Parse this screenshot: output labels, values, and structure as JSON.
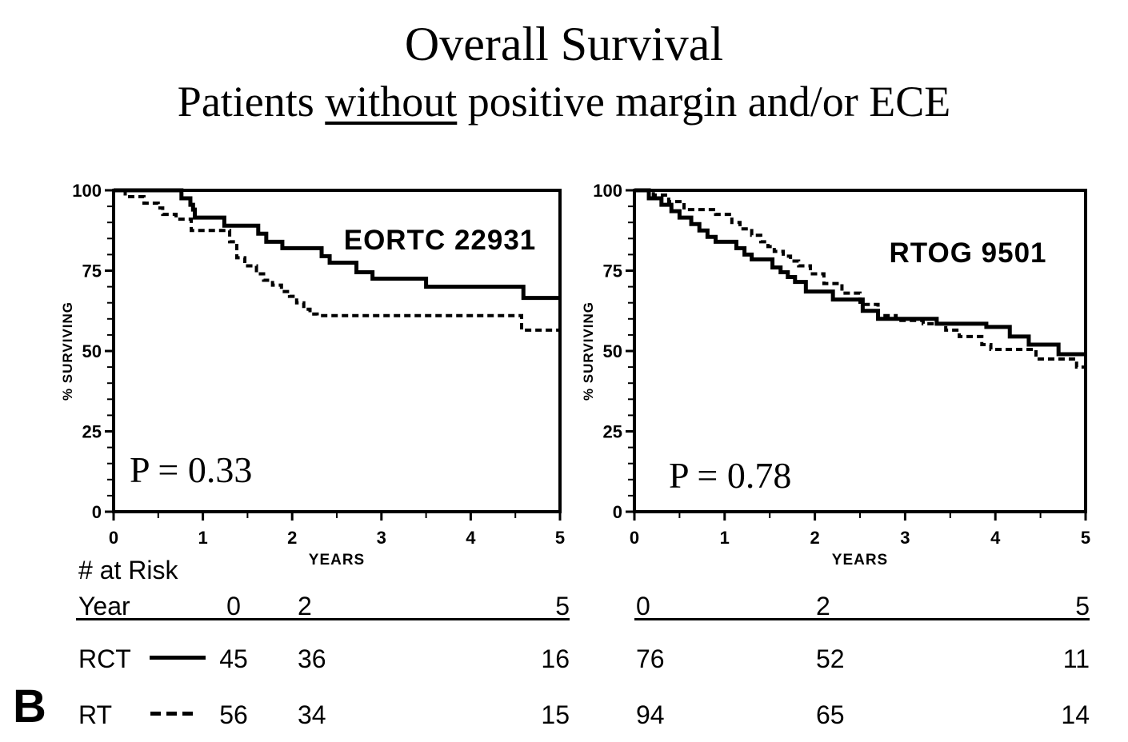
{
  "figure": {
    "title": "Overall Survival",
    "subtitle_pre": "Patients ",
    "subtitle_underlined": "without",
    "subtitle_post": " positive margin and/or ECE",
    "panel_label": "B"
  },
  "chart_data": [
    {
      "type": "line",
      "variant": "kaplan-meier-step",
      "title": "EORTC 22931",
      "p_value_label": "P = 0.33",
      "xlabel": "YEARS",
      "ylabel": "% SURVIVING",
      "xlim": [
        0,
        5
      ],
      "ylim": [
        0,
        100
      ],
      "x_ticks": [
        0,
        1,
        2,
        3,
        4,
        5
      ],
      "y_ticks": [
        0,
        25,
        50,
        75,
        100
      ],
      "x_minor_step": 0.5,
      "y_minor_step": 5,
      "grid": false,
      "series": [
        {
          "name": "RCT",
          "style": "solid",
          "steps": [
            [
              0,
              100
            ],
            [
              0.76,
              97.5
            ],
            [
              0.86,
              95.5
            ],
            [
              0.89,
              94
            ],
            [
              0.91,
              91.5
            ],
            [
              1.24,
              89
            ],
            [
              1.62,
              86.5
            ],
            [
              1.71,
              84
            ],
            [
              1.89,
              82
            ],
            [
              2.33,
              79.5
            ],
            [
              2.42,
              77.5
            ],
            [
              2.72,
              74.5
            ],
            [
              2.9,
              72.5
            ],
            [
              3.5,
              70
            ],
            [
              4.59,
              66.5
            ]
          ]
        },
        {
          "name": "RT",
          "style": "dashed",
          "steps": [
            [
              0,
              100
            ],
            [
              0.13,
              98
            ],
            [
              0.34,
              96
            ],
            [
              0.5,
              94.5
            ],
            [
              0.55,
              92.5
            ],
            [
              0.7,
              91
            ],
            [
              0.87,
              87.5
            ],
            [
              1.3,
              84
            ],
            [
              1.38,
              79
            ],
            [
              1.47,
              76.5
            ],
            [
              1.6,
              74
            ],
            [
              1.68,
              72
            ],
            [
              1.78,
              70.5
            ],
            [
              1.88,
              68.5
            ],
            [
              1.97,
              67
            ],
            [
              2.05,
              65
            ],
            [
              2.13,
              63
            ],
            [
              2.2,
              61.5
            ],
            [
              2.28,
              61
            ],
            [
              4.57,
              56.5
            ]
          ]
        }
      ]
    },
    {
      "type": "line",
      "variant": "kaplan-meier-step",
      "title": "RTOG 9501",
      "p_value_label": "P = 0.78",
      "xlabel": "YEARS",
      "ylabel": "% SURVIVING",
      "xlim": [
        0,
        5
      ],
      "ylim": [
        0,
        100
      ],
      "x_ticks": [
        0,
        1,
        2,
        3,
        4,
        5
      ],
      "y_ticks": [
        0,
        25,
        50,
        75,
        100
      ],
      "x_minor_step": 0.5,
      "y_minor_step": 5,
      "grid": false,
      "series": [
        {
          "name": "RCT",
          "style": "solid",
          "steps": [
            [
              0,
              100
            ],
            [
              0.16,
              97.5
            ],
            [
              0.3,
              95.5
            ],
            [
              0.41,
              93.5
            ],
            [
              0.5,
              91.5
            ],
            [
              0.63,
              89.5
            ],
            [
              0.72,
              87.5
            ],
            [
              0.81,
              85.5
            ],
            [
              0.9,
              84
            ],
            [
              1.13,
              82
            ],
            [
              1.22,
              80
            ],
            [
              1.3,
              78.5
            ],
            [
              1.53,
              76
            ],
            [
              1.62,
              74.5
            ],
            [
              1.7,
              73
            ],
            [
              1.78,
              71.5
            ],
            [
              1.9,
              68.5
            ],
            [
              2.2,
              66
            ],
            [
              2.53,
              62.5
            ],
            [
              2.7,
              60
            ],
            [
              3.35,
              58.5
            ],
            [
              3.9,
              57.5
            ],
            [
              4.16,
              54.5
            ],
            [
              4.37,
              52
            ],
            [
              4.7,
              49
            ]
          ]
        },
        {
          "name": "RT",
          "style": "dashed",
          "steps": [
            [
              0,
              100
            ],
            [
              0.21,
              98.5
            ],
            [
              0.38,
              96.5
            ],
            [
              0.55,
              94
            ],
            [
              0.9,
              92.5
            ],
            [
              1.08,
              90
            ],
            [
              1.17,
              88
            ],
            [
              1.3,
              86
            ],
            [
              1.4,
              84
            ],
            [
              1.48,
              82.5
            ],
            [
              1.55,
              81
            ],
            [
              1.65,
              79.5
            ],
            [
              1.73,
              78
            ],
            [
              1.82,
              76.5
            ],
            [
              1.95,
              74
            ],
            [
              2.1,
              71
            ],
            [
              2.3,
              68
            ],
            [
              2.5,
              64.5
            ],
            [
              2.7,
              61
            ],
            [
              2.9,
              59.5
            ],
            [
              3.2,
              58.5
            ],
            [
              3.45,
              56.5
            ],
            [
              3.6,
              54.5
            ],
            [
              3.85,
              52
            ],
            [
              3.95,
              50.5
            ],
            [
              4.45,
              47.5
            ],
            [
              4.9,
              45
            ]
          ]
        }
      ]
    }
  ],
  "risk_table": {
    "heading": "# at Risk",
    "year_label": "Year",
    "columns": [
      "0",
      "2",
      "5"
    ],
    "rows": [
      {
        "label": "RCT",
        "line_style": "solid",
        "left_values": [
          "45",
          "36",
          "16"
        ],
        "right_values": [
          "76",
          "52",
          "11"
        ]
      },
      {
        "label": "RT",
        "line_style": "dashed",
        "left_values": [
          "56",
          "34",
          "15"
        ],
        "right_values": [
          "94",
          "65",
          "14"
        ]
      }
    ]
  }
}
